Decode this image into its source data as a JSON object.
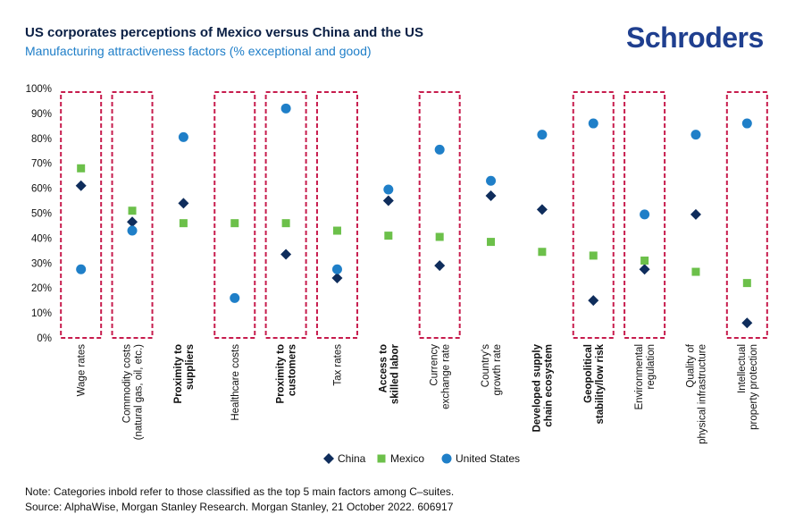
{
  "header": {
    "title": "US corporates perceptions of Mexico versus China and the US",
    "subtitle": "Manufacturing attractiveness factors (% exceptional and good)",
    "logo": "Schroders"
  },
  "footer": {
    "note": "Note: Categories inbold refer to those classified as the top 5 main factors among C–suites.",
    "source": "Source: AlphaWise, Morgan Stanley Research. Morgan Stanley, 21 October 2022. 606917"
  },
  "chart_data": {
    "type": "scatter",
    "title": "US corporates perceptions of Mexico versus China and the US",
    "subtitle": "Manufacturing attractiveness factors (% exceptional and good)",
    "ylim": [
      0,
      100
    ],
    "yticks": [
      "0%",
      "10%",
      "20%",
      "30%",
      "40%",
      "50%",
      "60%",
      "70%",
      "80%",
      "90%",
      "100%"
    ],
    "categories": [
      {
        "lines": [
          "Wage rates"
        ],
        "bold": false,
        "highlight": true
      },
      {
        "lines": [
          "Commodity costs",
          "(natural gas, oil, etc.)"
        ],
        "bold": false,
        "highlight": true
      },
      {
        "lines": [
          "Proximity to",
          "suppliers"
        ],
        "bold": true,
        "highlight": false
      },
      {
        "lines": [
          "Healthcare costs"
        ],
        "bold": false,
        "highlight": true
      },
      {
        "lines": [
          "Proximity to",
          "customers"
        ],
        "bold": true,
        "highlight": true
      },
      {
        "lines": [
          "Tax rates"
        ],
        "bold": false,
        "highlight": true
      },
      {
        "lines": [
          "Access to",
          "skilled labor"
        ],
        "bold": true,
        "highlight": false
      },
      {
        "lines": [
          "Currency",
          "exchange rate"
        ],
        "bold": false,
        "highlight": true
      },
      {
        "lines": [
          "Country's",
          "growth rate"
        ],
        "bold": false,
        "highlight": false
      },
      {
        "lines": [
          "Developed supply",
          "chain ecosystem"
        ],
        "bold": true,
        "highlight": false
      },
      {
        "lines": [
          "Geopolitical",
          "stability/low risk"
        ],
        "bold": true,
        "highlight": true
      },
      {
        "lines": [
          "Environmental",
          "regulation"
        ],
        "bold": false,
        "highlight": true
      },
      {
        "lines": [
          "Quality of",
          "physical infrastructure"
        ],
        "bold": false,
        "highlight": false
      },
      {
        "lines": [
          "Intellectual",
          "property protection"
        ],
        "bold": false,
        "highlight": true
      }
    ],
    "series": [
      {
        "name": "China",
        "marker": "diamond",
        "color": "#0f2d5c",
        "values": [
          61,
          46.5,
          54,
          null,
          33.5,
          24,
          55,
          29,
          57,
          51.5,
          15,
          27.5,
          49.5,
          6
        ]
      },
      {
        "name": "Mexico",
        "marker": "square",
        "color": "#6cc04a",
        "values": [
          68,
          51,
          46,
          46,
          46,
          43,
          41,
          40.5,
          38.5,
          34.5,
          33,
          31,
          26.5,
          22
        ]
      },
      {
        "name": "United States",
        "marker": "circle",
        "color": "#1f7fc8",
        "values": [
          27.5,
          43,
          80.5,
          16,
          92,
          27.5,
          59.5,
          75.5,
          63,
          81.5,
          86,
          49.5,
          81.5,
          86
        ]
      }
    ],
    "legend_position": "bottom-center",
    "highlight_color": "#c71c4d"
  }
}
